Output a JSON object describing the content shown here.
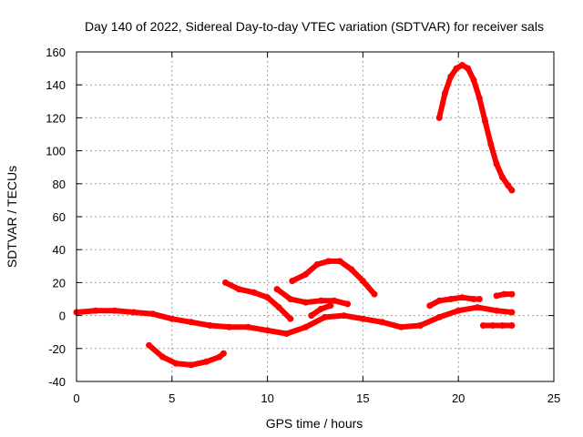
{
  "chart_data": {
    "type": "scatter",
    "title": "Day 140 of 2022, Sidereal Day-to-day VTEC variation (SDTVAR) for receiver sals",
    "xlabel": "GPS time / hours",
    "ylabel": "SDTVAR / TECUs",
    "xlim": [
      0,
      25
    ],
    "ylim": [
      -40,
      160
    ],
    "xticks": [
      0,
      5,
      10,
      15,
      20,
      25
    ],
    "yticks": [
      -40,
      -20,
      0,
      20,
      40,
      60,
      80,
      100,
      120,
      140,
      160
    ],
    "grid": true,
    "color": "#ff0000",
    "series": [
      {
        "name": "main",
        "x": [
          0,
          1,
          2,
          3,
          4,
          5,
          6,
          7,
          8,
          9,
          10,
          11,
          12,
          13,
          14,
          15,
          16,
          17,
          18,
          19,
          20,
          21,
          22,
          22.8
        ],
        "y": [
          2,
          3,
          3,
          2,
          1,
          -2,
          -4,
          -6,
          -7,
          -7,
          -9,
          -11,
          -7,
          -1,
          0,
          -2,
          -4,
          -7,
          -6,
          -1,
          3,
          5,
          3,
          2
        ]
      },
      {
        "name": "arc1",
        "x": [
          3.8,
          4.5,
          5.2,
          6.0,
          6.8,
          7.5,
          7.7
        ],
        "y": [
          -18,
          -25,
          -29,
          -30,
          -28,
          -25,
          -23
        ]
      },
      {
        "name": "desc1",
        "x": [
          7.8,
          8.5,
          9.3,
          10,
          10.6,
          11.2
        ],
        "y": [
          20,
          16,
          14,
          11,
          5,
          -2
        ]
      },
      {
        "name": "mid1",
        "x": [
          10.5,
          11.2,
          12,
          12.8,
          13.5,
          14.2
        ],
        "y": [
          16,
          10,
          8,
          9,
          9,
          7
        ]
      },
      {
        "name": "bump",
        "x": [
          11.3,
          12,
          12.6,
          13.2,
          13.8,
          14.4,
          15.0,
          15.6
        ],
        "y": [
          21,
          25,
          31,
          33,
          33,
          28,
          21,
          13
        ]
      },
      {
        "name": "short1",
        "x": [
          12.3,
          12.8,
          13.3
        ],
        "y": [
          0,
          4,
          6
        ]
      },
      {
        "name": "seg20",
        "x": [
          18.5,
          19,
          19.6,
          20.2,
          20.8,
          21.1
        ],
        "y": [
          6,
          9,
          10,
          11,
          10,
          10
        ]
      },
      {
        "name": "peak",
        "x": [
          19.0,
          19.3,
          19.6,
          19.9,
          20.2,
          20.5,
          20.8,
          21.1,
          21.4,
          21.7,
          22.0,
          22.3,
          22.6,
          22.8
        ],
        "y": [
          120,
          135,
          145,
          150,
          152,
          150,
          143,
          132,
          118,
          104,
          92,
          84,
          79,
          76
        ]
      },
      {
        "name": "seg13",
        "x": [
          22.0,
          22.4,
          22.8
        ],
        "y": [
          12,
          13,
          13
        ]
      },
      {
        "name": "segm6",
        "x": [
          21.3,
          21.8,
          22.3,
          22.8
        ],
        "y": [
          -6,
          -6,
          -6,
          -6
        ]
      }
    ]
  }
}
